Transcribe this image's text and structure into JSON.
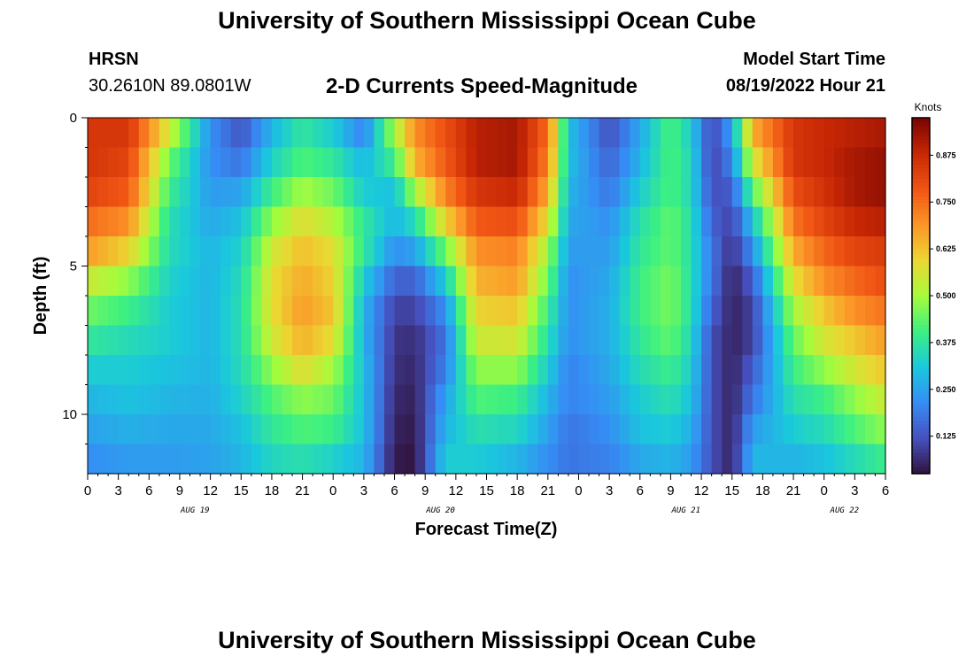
{
  "header": {
    "title": "University of Southern Mississippi Ocean Cube",
    "station": "HRSN",
    "coordinates": "30.2610N  89.0801W",
    "subtitle": "2-D Currents Speed-Magnitude",
    "model_label": "Model Start Time",
    "model_time": "08/19/2022 Hour 21"
  },
  "footer": {
    "title": "University of Southern Mississippi Ocean Cube"
  },
  "chart_data": {
    "type": "heatmap",
    "title": "2-D Currents Speed-Magnitude",
    "xlabel": "Forecast Time(Z)",
    "ylabel": "Depth (ft)",
    "x_start_hour": 0,
    "x_end_hour": 78,
    "x_step_hours": 3,
    "x_tick_labels": [
      "0",
      "3",
      "6",
      "9",
      "12",
      "15",
      "18",
      "21",
      "0",
      "3",
      "6",
      "9",
      "12",
      "15",
      "18",
      "21",
      "0",
      "3",
      "6",
      "9",
      "12",
      "15",
      "18",
      "21",
      "0",
      "3",
      "6"
    ],
    "date_labels": [
      {
        "label": "AUG 19",
        "hour": 10.5
      },
      {
        "label": "AUG 20",
        "hour": 34.5
      },
      {
        "label": "AUG 21",
        "hour": 58.5
      },
      {
        "label": "AUG 22",
        "hour": 74
      }
    ],
    "y_range": [
      0,
      12
    ],
    "y_tick_labels": [
      "0",
      "5",
      "10"
    ],
    "y_tick_values": [
      0,
      5,
      10
    ],
    "depth_levels_ft": [
      0.5,
      1.5,
      2.5,
      3.5,
      4.5,
      5.5,
      6.5,
      7.5,
      8.5,
      9.5,
      10.5,
      11.5
    ],
    "colorbar": {
      "unit": "Knots",
      "min": 0.025,
      "max": 0.975,
      "ticks": [
        0.125,
        0.25,
        0.375,
        0.5,
        0.625,
        0.75,
        0.875
      ],
      "tick_labels": [
        "0.125",
        "0.250",
        "0.375",
        "0.500",
        "0.625",
        "0.750",
        "0.875"
      ]
    },
    "profiles": [
      {
        "hour": 0,
        "values": [
          0.85,
          0.85,
          0.82,
          0.75,
          0.68,
          0.55,
          0.45,
          0.38,
          0.32,
          0.28,
          0.25,
          0.22
        ]
      },
      {
        "hour": 4,
        "values": [
          0.85,
          0.82,
          0.78,
          0.7,
          0.6,
          0.48,
          0.4,
          0.35,
          0.32,
          0.3,
          0.27,
          0.24
        ]
      },
      {
        "hour": 8,
        "values": [
          0.55,
          0.45,
          0.4,
          0.36,
          0.35,
          0.33,
          0.32,
          0.32,
          0.3,
          0.28,
          0.26,
          0.24
        ]
      },
      {
        "hour": 12,
        "values": [
          0.22,
          0.22,
          0.24,
          0.26,
          0.28,
          0.28,
          0.28,
          0.28,
          0.28,
          0.27,
          0.26,
          0.25
        ]
      },
      {
        "hour": 15,
        "values": [
          0.13,
          0.18,
          0.25,
          0.3,
          0.33,
          0.35,
          0.36,
          0.36,
          0.35,
          0.33,
          0.3,
          0.28
        ]
      },
      {
        "hour": 18,
        "values": [
          0.28,
          0.33,
          0.4,
          0.48,
          0.55,
          0.58,
          0.58,
          0.55,
          0.48,
          0.42,
          0.38,
          0.34
        ]
      },
      {
        "hour": 21,
        "values": [
          0.38,
          0.42,
          0.5,
          0.58,
          0.63,
          0.66,
          0.68,
          0.65,
          0.58,
          0.48,
          0.42,
          0.36
        ]
      },
      {
        "hour": 24,
        "values": [
          0.32,
          0.38,
          0.45,
          0.52,
          0.58,
          0.6,
          0.62,
          0.58,
          0.5,
          0.45,
          0.4,
          0.33
        ]
      },
      {
        "hour": 27,
        "values": [
          0.2,
          0.28,
          0.32,
          0.38,
          0.38,
          0.32,
          0.28,
          0.28,
          0.3,
          0.3,
          0.3,
          0.28
        ]
      },
      {
        "hour": 30,
        "values": [
          0.5,
          0.4,
          0.3,
          0.28,
          0.22,
          0.15,
          0.1,
          0.08,
          0.07,
          0.06,
          0.05,
          0.04
        ]
      },
      {
        "hour": 32,
        "values": [
          0.7,
          0.65,
          0.5,
          0.35,
          0.25,
          0.15,
          0.1,
          0.07,
          0.06,
          0.05,
          0.04,
          0.03
        ]
      },
      {
        "hour": 35,
        "values": [
          0.8,
          0.78,
          0.72,
          0.6,
          0.45,
          0.32,
          0.22,
          0.18,
          0.2,
          0.25,
          0.28,
          0.32
        ]
      },
      {
        "hour": 38,
        "values": [
          0.9,
          0.9,
          0.85,
          0.78,
          0.7,
          0.65,
          0.6,
          0.55,
          0.48,
          0.42,
          0.36,
          0.32
        ]
      },
      {
        "hour": 42,
        "values": [
          0.92,
          0.92,
          0.88,
          0.8,
          0.72,
          0.68,
          0.62,
          0.56,
          0.48,
          0.4,
          0.34,
          0.28
        ]
      },
      {
        "hour": 45,
        "values": [
          0.75,
          0.72,
          0.66,
          0.58,
          0.5,
          0.45,
          0.4,
          0.36,
          0.32,
          0.28,
          0.25,
          0.22
        ]
      },
      {
        "hour": 47,
        "values": [
          0.3,
          0.3,
          0.28,
          0.26,
          0.24,
          0.22,
          0.22,
          0.22,
          0.2,
          0.2,
          0.18,
          0.18
        ]
      },
      {
        "hour": 51,
        "values": [
          0.12,
          0.15,
          0.18,
          0.22,
          0.24,
          0.26,
          0.27,
          0.27,
          0.26,
          0.24,
          0.22,
          0.2
        ]
      },
      {
        "hour": 54,
        "values": [
          0.26,
          0.28,
          0.32,
          0.36,
          0.38,
          0.4,
          0.4,
          0.38,
          0.35,
          0.32,
          0.3,
          0.26
        ]
      },
      {
        "hour": 57,
        "values": [
          0.42,
          0.42,
          0.42,
          0.44,
          0.44,
          0.46,
          0.46,
          0.44,
          0.4,
          0.36,
          0.32,
          0.28
        ]
      },
      {
        "hour": 59,
        "values": [
          0.32,
          0.34,
          0.34,
          0.36,
          0.36,
          0.36,
          0.36,
          0.34,
          0.32,
          0.3,
          0.27,
          0.24
        ]
      },
      {
        "hour": 61,
        "values": [
          0.1,
          0.1,
          0.12,
          0.15,
          0.18,
          0.18,
          0.15,
          0.12,
          0.12,
          0.12,
          0.12,
          0.12
        ]
      },
      {
        "hour": 63,
        "values": [
          0.25,
          0.2,
          0.14,
          0.1,
          0.07,
          0.05,
          0.05,
          0.05,
          0.05,
          0.05,
          0.05,
          0.05
        ]
      },
      {
        "hour": 65,
        "values": [
          0.65,
          0.55,
          0.42,
          0.3,
          0.22,
          0.14,
          0.1,
          0.1,
          0.14,
          0.18,
          0.24,
          0.28
        ]
      },
      {
        "hour": 69,
        "values": [
          0.85,
          0.85,
          0.8,
          0.74,
          0.66,
          0.58,
          0.5,
          0.44,
          0.4,
          0.36,
          0.32,
          0.28
        ]
      },
      {
        "hour": 72,
        "values": [
          0.88,
          0.88,
          0.86,
          0.82,
          0.76,
          0.7,
          0.62,
          0.56,
          0.48,
          0.4,
          0.35,
          0.3
        ]
      },
      {
        "hour": 75,
        "values": [
          0.9,
          0.92,
          0.92,
          0.88,
          0.82,
          0.76,
          0.7,
          0.62,
          0.56,
          0.48,
          0.42,
          0.35
        ]
      },
      {
        "hour": 78,
        "values": [
          0.92,
          0.94,
          0.94,
          0.9,
          0.84,
          0.8,
          0.74,
          0.68,
          0.62,
          0.55,
          0.48,
          0.4
        ]
      }
    ]
  }
}
